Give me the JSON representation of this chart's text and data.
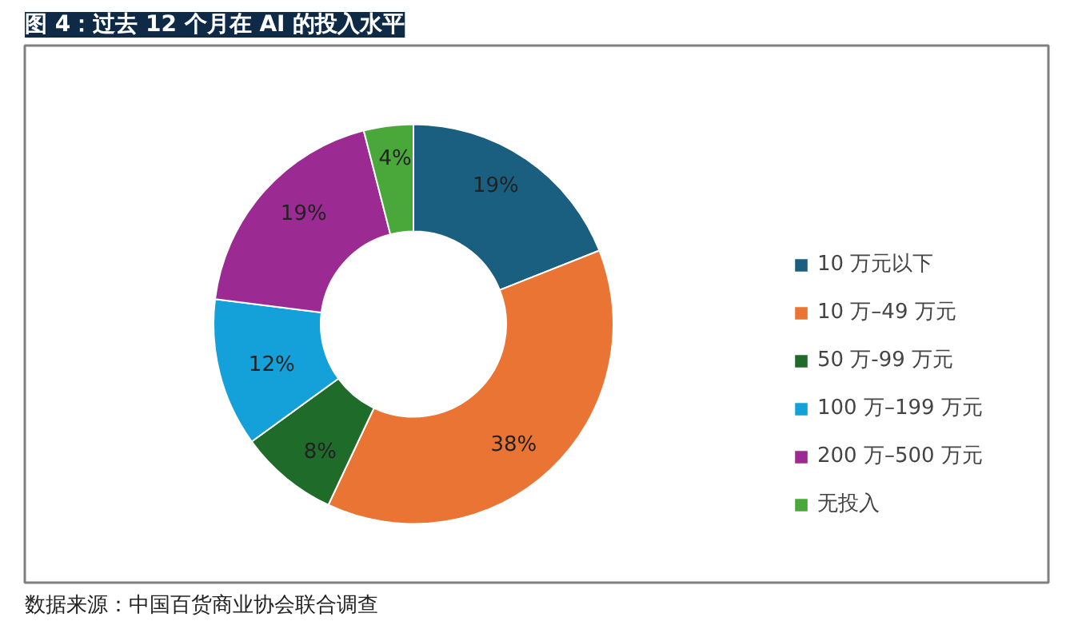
{
  "chart_data": {
    "type": "donut",
    "title": "图 4：过去 12 个月在 AI 的投入水平",
    "categories": [
      "10 万元以下",
      "10 万–49 万元",
      "50 万-99 万元",
      "100 万–199 万元",
      "200 万–500 万元",
      "无投入"
    ],
    "values": [
      19,
      38,
      8,
      12,
      19,
      4
    ],
    "colors": [
      "#1a5f80",
      "#ea7433",
      "#1e6b2a",
      "#14a0d8",
      "#9b2a92",
      "#4aa83a"
    ],
    "value_labels": [
      "19%",
      "38%",
      "8%",
      "12%",
      "19%",
      "4%"
    ],
    "legend": "right",
    "annotations": [
      "数据来源：中国百货商业协会联合调查"
    ]
  }
}
